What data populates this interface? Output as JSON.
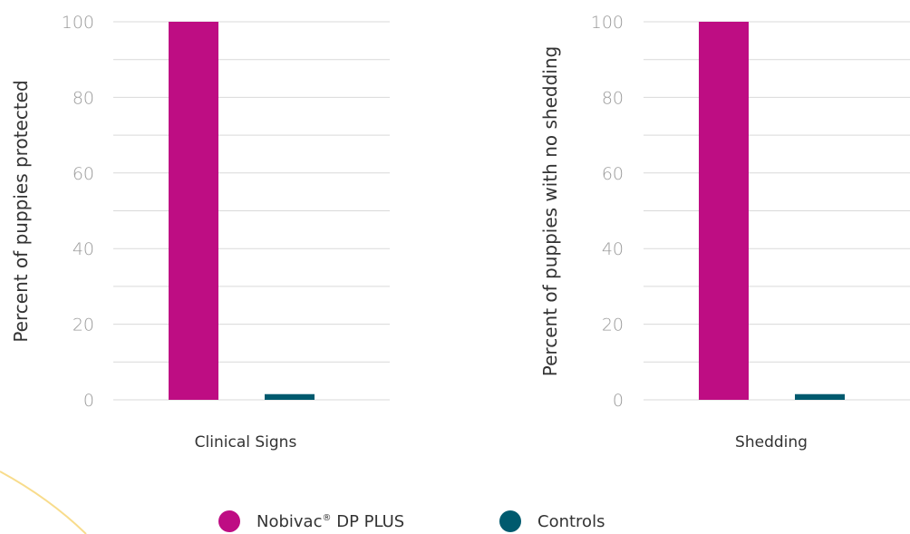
{
  "chart_data": [
    {
      "type": "bar",
      "categories": [
        "Clinical Signs"
      ],
      "series": [
        {
          "name": "Nobivac® DP PLUS",
          "values": [
            100
          ],
          "color": "#BE0D83"
        },
        {
          "name": "Controls",
          "values": [
            1.5
          ],
          "color": "#005A6E"
        }
      ],
      "ylabel": "Percent of puppies protected",
      "xlabel": "",
      "ylim": [
        0,
        100
      ],
      "yticks": [
        0,
        20,
        40,
        60,
        80,
        100
      ],
      "grid": true
    },
    {
      "type": "bar",
      "categories": [
        "Shedding"
      ],
      "series": [
        {
          "name": "Nobivac® DP PLUS",
          "values": [
            100
          ],
          "color": "#BE0D83"
        },
        {
          "name": "Controls",
          "values": [
            1.5
          ],
          "color": "#005A6E"
        }
      ],
      "ylabel": "Percent of puppies with no shedding",
      "xlabel": "",
      "ylim": [
        0,
        100
      ],
      "yticks": [
        0,
        20,
        40,
        60,
        80,
        100
      ],
      "grid": true
    }
  ],
  "legend": {
    "position": "bottom",
    "items": [
      {
        "name": "Nobivac",
        "sup": "®",
        "suffix": " DP PLUS",
        "color": "#BE0D83"
      },
      {
        "name": "Controls",
        "sup": "",
        "suffix": "",
        "color": "#005A6E"
      }
    ]
  },
  "decoration": {
    "arc_color": "#F8DC8C"
  }
}
